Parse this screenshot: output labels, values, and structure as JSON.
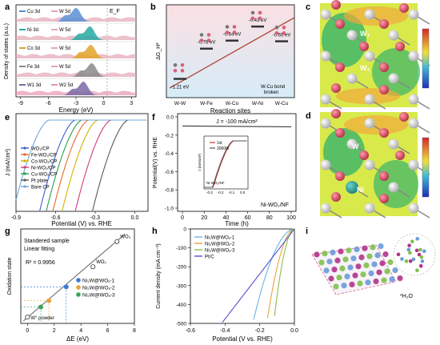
{
  "figure": {
    "panel_letters": [
      "a",
      "b",
      "c",
      "d",
      "e",
      "f",
      "g",
      "h",
      "i"
    ]
  },
  "chart_data": [
    {
      "panel": "a",
      "type": "area",
      "xlabel": "Energy (eV)",
      "ylabel": "Density of states (a.u.)",
      "xticks": [
        "-9",
        "-6",
        "-3",
        "0",
        "3"
      ],
      "fermi_label": "E_F",
      "rows": [
        {
          "legend": [
            "Cu 3d",
            "W 5d"
          ],
          "colors": [
            "#5b8fd6",
            "#e3a6b5"
          ]
        },
        {
          "legend": [
            "Ni 3d",
            "W 5d"
          ],
          "colors": [
            "#27a9a3",
            "#e3a6b5"
          ]
        },
        {
          "legend": [
            "Co 3d",
            "W 5d"
          ],
          "colors": [
            "#e3a32a",
            "#e3a6b5"
          ]
        },
        {
          "legend": [
            "Fe 3d",
            "W 5d"
          ],
          "colors": [
            "#8a8a8a",
            "#e3a6b5"
          ]
        },
        {
          "legend": [
            "W1 3d",
            "W2 5d"
          ],
          "colors": [
            "#7a6aa6",
            "#e895b4"
          ]
        }
      ]
    },
    {
      "panel": "b",
      "type": "line",
      "xlabel": "Reaction sites",
      "ylabel": "ΔG_H*",
      "categories": [
        "W-W",
        "W-Fe",
        "W-Co",
        "W-Ni",
        "W-Cu"
      ],
      "values": [
        -1.21,
        -0.76,
        -0.64,
        -0.43,
        -0.65
      ],
      "labels": [
        "-1.21 eV",
        "-0.76 eV",
        "-0.64 eV",
        "-0.43 eV",
        "-0.65 eV"
      ],
      "annotation": "W-Cu bond broken"
    },
    {
      "panel": "e",
      "type": "line",
      "xlabel": "Potential (V) vs. RHE",
      "ylabel": "J (mA/cm²)",
      "xticks": [
        "-0.9",
        "-0.6",
        "-0.3",
        "0.0"
      ],
      "xlim": [
        -0.9,
        0.1
      ],
      "series": [
        {
          "name": "WO₂/CP",
          "color": "#3a5fcd",
          "onset": -0.45
        },
        {
          "name": "Fe-WO₂/CP",
          "color": "#e66a2c",
          "onset": -0.35
        },
        {
          "name": "Co-WO₂/CP",
          "color": "#d4b000",
          "onset": -0.28
        },
        {
          "name": "Ni-WO₂/CP",
          "color": "#d23b7c",
          "onset": -0.18
        },
        {
          "name": "Cu-WO₂/CP",
          "color": "#2a9d4a",
          "onset": -0.4
        },
        {
          "name": "Pt plate",
          "color": "#5a5a5a",
          "onset": -0.05
        },
        {
          "name": "Bare CP",
          "color": "#6fa8dc",
          "onset": -0.65
        }
      ]
    },
    {
      "panel": "f",
      "type": "line",
      "title": "J = -100 mA/cm²",
      "xlabel": "Time (h)",
      "ylabel": "Potential(V) vs. RHE",
      "xticks": [
        "0",
        "20",
        "40",
        "60",
        "80",
        "100"
      ],
      "yticks": [
        "0.0",
        "-0.2",
        "-0.4",
        "-0.6",
        "-0.8",
        "-1.0"
      ],
      "ylim": [
        -1.0,
        0.0
      ],
      "value": -0.1,
      "sample_label": "Ni-WO₂/NF",
      "inset": {
        "legend": [
          "1st",
          "2000th"
        ],
        "colors": [
          "#c0392b",
          "#555555"
        ],
        "xlabel": "Potential (V) vs. RHE",
        "ylabel": "J (mA/cm²)",
        "xticks": [
          "-0.3",
          "-0.2",
          "-0.1",
          "0.0"
        ],
        "sample_label": "Ni-WO₂/NF"
      }
    },
    {
      "panel": "g",
      "type": "scatter",
      "xlabel": "ΔE (eV)",
      "ylabel": "Oxidation state",
      "xticks": [
        "0",
        "2",
        "4",
        "6",
        "8"
      ],
      "xlim": [
        -0.5,
        8
      ],
      "ylim": [
        -0.5,
        7
      ],
      "fit_label": "Linear fitting",
      "r2": "R² = 0.9956",
      "standards_label": "Standered sample",
      "standards": [
        {
          "x": 0,
          "y": 0,
          "label": "W° powder"
        },
        {
          "x": 4.9,
          "y": 4,
          "label": "WO₂"
        },
        {
          "x": 6.7,
          "y": 6,
          "label": "WO₃"
        }
      ],
      "samples": [
        {
          "name": "Ni₁W@WOₓ-1",
          "x": 2.9,
          "y": 2.4,
          "color": "#3a7bd5"
        },
        {
          "name": "Ni₂W@WOₓ-2",
          "x": 1.6,
          "y": 1.3,
          "color": "#e8a33a"
        },
        {
          "name": "Ni₃W@WOₓ-3",
          "x": 1.0,
          "y": 0.8,
          "color": "#3aa35a"
        }
      ]
    },
    {
      "panel": "h",
      "type": "line",
      "xlabel": "Potential (V vs. RHE)",
      "ylabel": "Current density (mA cm⁻²)",
      "xticks": [
        "-0.6",
        "-0.4",
        "-0.2",
        "0.0"
      ],
      "yticks": [
        "0",
        "-100",
        "-200",
        "-300",
        "-400",
        "-500"
      ],
      "xlim": [
        -0.6,
        0.0
      ],
      "ylim": [
        -500,
        0
      ],
      "series": [
        {
          "name": "Ni₁W@WOₓ-1",
          "color": "#6fb3e6",
          "end_x": -0.24
        },
        {
          "name": "Ni₂W@WOₓ-2",
          "color": "#e8a33a",
          "end_x": -0.16
        },
        {
          "name": "Ni₃W@WOₓ-3",
          "color": "#8bbf4a",
          "end_x": -0.12
        },
        {
          "name": "Pt/C",
          "color": "#5a4fcf",
          "end_x": -0.42
        }
      ]
    }
  ],
  "panel_c": {
    "labels": [
      "W₁",
      "W₂"
    ]
  },
  "panel_d": {
    "labels": [
      "W",
      "Ni"
    ]
  },
  "panel_i": {
    "label": "*H₂O"
  }
}
